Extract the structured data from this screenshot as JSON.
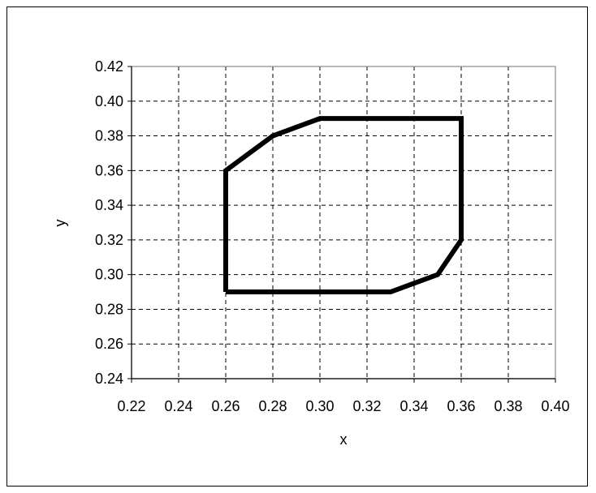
{
  "chart_data": {
    "type": "line",
    "title": "",
    "xlabel": "x",
    "ylabel": "y",
    "xlim": [
      0.22,
      0.4
    ],
    "ylim": [
      0.24,
      0.42
    ],
    "x_ticks": [
      "0.22",
      "0.24",
      "0.26",
      "0.28",
      "0.30",
      "0.32",
      "0.34",
      "0.36",
      "0.38",
      "0.40"
    ],
    "y_ticks": [
      "0.24",
      "0.26",
      "0.28",
      "0.30",
      "0.32",
      "0.34",
      "0.36",
      "0.38",
      "0.40",
      "0.42"
    ],
    "grid": true,
    "series": [
      {
        "color": "#000000",
        "points": [
          [
            0.26,
            0.29
          ],
          [
            0.26,
            0.36
          ],
          [
            0.28,
            0.38
          ],
          [
            0.3,
            0.39
          ],
          [
            0.36,
            0.39
          ],
          [
            0.36,
            0.32
          ],
          [
            0.35,
            0.3
          ],
          [
            0.33,
            0.29
          ],
          [
            0.26,
            0.29
          ]
        ]
      }
    ]
  }
}
